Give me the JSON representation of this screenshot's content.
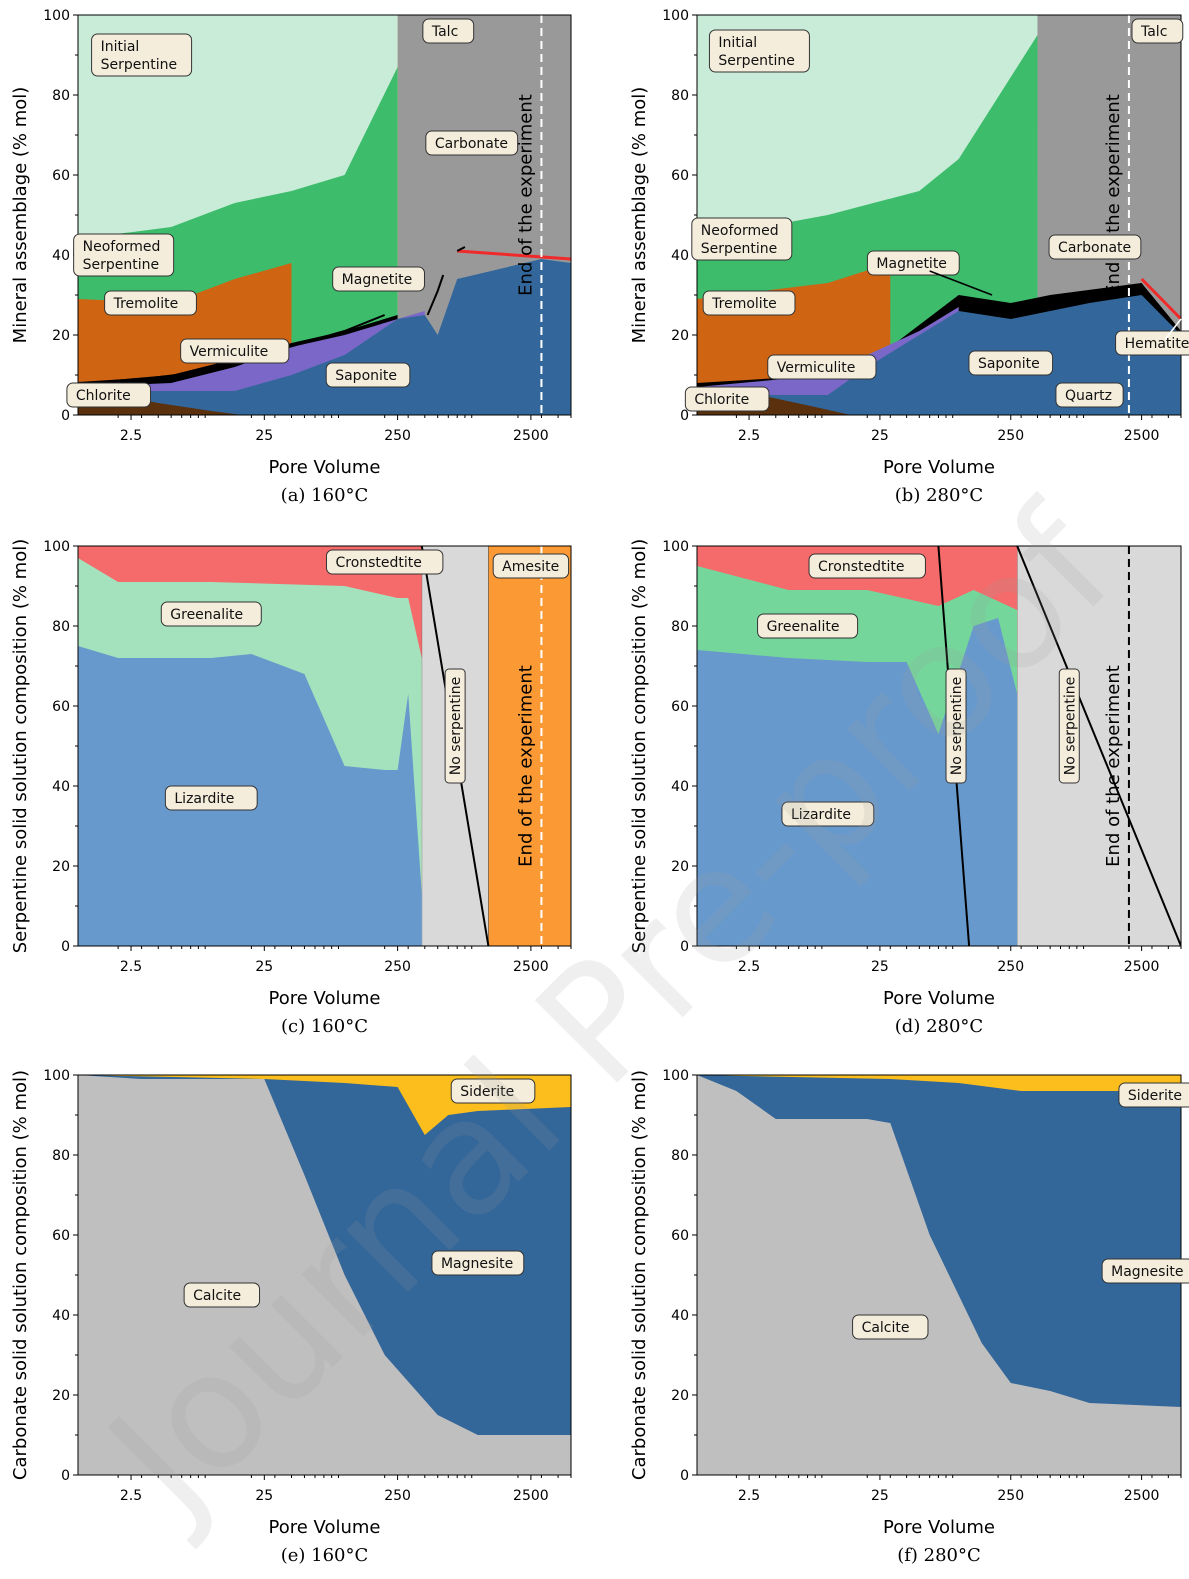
{
  "colors": {
    "initial_serpentine": "#c8ecd8",
    "neoformed_serpentine": "#3dbd6b",
    "tremolite": "#cf6412",
    "chlorite": "#5a300d",
    "vermiculite": "#7a67c8",
    "saponite": "#33679b",
    "magnetite": "#000000",
    "carbonate": "#999999",
    "talc": "#f5bf18",
    "quartz_area": "#cc9a04",
    "hematite": "#f02a2a",
    "lizardite": "#6899cc",
    "greenalite": "#a3e2bd",
    "greenalite_280": "#75d69b",
    "cronstedtite": "#f56a6a",
    "amesite": "#fb9a35",
    "no_serpentine": "#d9d9d9",
    "calcite": "#bfbfbf",
    "magnesite": "#336699",
    "siderite": "#fbbe1c"
  },
  "watermark": "Journal Pre-proof",
  "end_label": "End of the experiment",
  "chart_data": [
    {
      "panel": "a",
      "caption": "(a)  160°C",
      "type": "area",
      "xlabel": "Pore Volume",
      "ylabel": "Mineral assemblage (% mol)",
      "xscale": "log",
      "xlim": [
        1,
        5000
      ],
      "ylim": [
        0,
        100
      ],
      "xticks": [
        "2.5",
        "25",
        "250",
        "2500"
      ],
      "yticks": [
        "0",
        "20",
        "40",
        "60",
        "80",
        "100"
      ],
      "end_of_experiment": 3000,
      "series": [
        {
          "name": "Chlorite",
          "x": [
            1,
            2,
            4,
            10,
            17
          ],
          "values": [
            6,
            5,
            3,
            1,
            0
          ]
        },
        {
          "name": "Saponite",
          "x": [
            1,
            5,
            15,
            40,
            100,
            250,
            400,
            500,
            700,
            3000,
            5000
          ],
          "values": [
            6,
            6,
            6,
            10,
            15,
            24,
            25,
            20,
            34,
            39,
            38
          ]
        },
        {
          "name": "Vermiculite",
          "x": [
            1,
            5,
            15,
            40,
            100,
            250,
            400
          ],
          "values": [
            7,
            8,
            12,
            17,
            20,
            24,
            26
          ]
        },
        {
          "name": "Magnetite",
          "x": [
            1,
            5,
            15,
            40,
            100,
            250
          ],
          "values": [
            8,
            10,
            14,
            18,
            21,
            25
          ]
        },
        {
          "name": "Tremolite",
          "x": [
            1,
            5,
            15,
            40
          ],
          "values": [
            29,
            28,
            34,
            38
          ]
        },
        {
          "name": "Neoformed Serpentine",
          "x": [
            1,
            5,
            15,
            40,
            100,
            250
          ],
          "values": [
            44,
            47,
            53,
            56,
            60,
            87
          ]
        },
        {
          "name": "Initial Serpentine",
          "x": [
            1,
            100,
            250
          ],
          "values": [
            100,
            100,
            100
          ]
        },
        {
          "name": "Carbonate",
          "x": [
            250,
            400,
            1000,
            5000
          ],
          "values": [
            100,
            100,
            100,
            100
          ]
        },
        {
          "name": "Talc",
          "x": [
            250,
            400,
            700
          ],
          "values": [
            100,
            100,
            100
          ]
        },
        {
          "name": "Hematite",
          "x": [
            700,
            5000
          ],
          "values": [
            41,
            39
          ]
        }
      ]
    },
    {
      "panel": "b",
      "caption": "(b)  280°C",
      "type": "area",
      "xlabel": "Pore Volume",
      "ylabel": "Mineral assemblage (% mol)",
      "xscale": "log",
      "xlim": [
        1,
        5000
      ],
      "ylim": [
        0,
        100
      ],
      "xticks": [
        "2.5",
        "25",
        "250",
        "2500"
      ],
      "yticks": [
        "0",
        "20",
        "40",
        "60",
        "80",
        "100"
      ],
      "end_of_experiment": 2000,
      "series": [
        {
          "name": "Chlorite",
          "x": [
            1,
            3,
            8,
            15
          ],
          "values": [
            6,
            5,
            2,
            0
          ]
        },
        {
          "name": "Saponite",
          "x": [
            1,
            10,
            20,
            50,
            100,
            250,
            500,
            1000,
            2500,
            5000
          ],
          "values": [
            5,
            5,
            12,
            20,
            26,
            24,
            26,
            28,
            30,
            20
          ]
        },
        {
          "name": "Quartz",
          "x": [
            400,
            700,
            1000,
            1500,
            3000,
            5000
          ],
          "values": [
            0,
            5,
            10,
            12,
            8,
            0
          ]
        },
        {
          "name": "Vermiculite",
          "x": [
            1,
            10,
            20,
            50,
            100
          ],
          "values": [
            7,
            10,
            15,
            21,
            27
          ]
        },
        {
          "name": "Magnetite",
          "x": [
            1,
            10,
            30,
            100,
            250,
            500,
            2500,
            5000
          ],
          "values": [
            8,
            10,
            17,
            30,
            28,
            30,
            33,
            21
          ]
        },
        {
          "name": "Hematite",
          "x": [
            2500,
            5000
          ],
          "values": [
            34,
            24
          ]
        },
        {
          "name": "Tremolite",
          "x": [
            1,
            10,
            30
          ],
          "values": [
            29,
            33,
            38
          ]
        },
        {
          "name": "Neoformed Serpentine",
          "x": [
            1,
            10,
            50,
            100,
            400
          ],
          "values": [
            44,
            50,
            56,
            64,
            95
          ]
        },
        {
          "name": "Initial Serpentine",
          "x": [
            1,
            400
          ],
          "values": [
            100,
            100
          ]
        },
        {
          "name": "Carbonate",
          "x": [
            400,
            5000
          ],
          "values": [
            100,
            100
          ]
        },
        {
          "name": "Talc",
          "x": [
            400,
            1000,
            3000
          ],
          "values": [
            100,
            100,
            100
          ]
        }
      ]
    },
    {
      "panel": "c",
      "caption": "(c) 160°C",
      "type": "area",
      "xlabel": "Pore Volume",
      "ylabel": "Serpentine solid solution composition (% mol)",
      "xscale": "log",
      "xlim": [
        1,
        5000
      ],
      "ylim": [
        0,
        100
      ],
      "xticks": [
        "2.5",
        "25",
        "250",
        "2500"
      ],
      "yticks": [
        "0",
        "20",
        "40",
        "60",
        "80",
        "100"
      ],
      "end_of_experiment": 3000,
      "no_serpentine_range": [
        380,
        1200
      ],
      "amesite_range": [
        1200,
        5000
      ],
      "series": [
        {
          "name": "Lizardite",
          "x": [
            1,
            2,
            10,
            20,
            50,
            100,
            200,
            250,
            300,
            380
          ],
          "values": [
            75,
            72,
            72,
            73,
            68,
            45,
            44,
            44,
            63,
            13
          ]
        },
        {
          "name": "Greenalite",
          "x": [
            1,
            2,
            10,
            100,
            250,
            300,
            380
          ],
          "values": [
            97,
            91,
            91,
            90,
            87,
            87,
            72
          ]
        },
        {
          "name": "Cronstedtite",
          "x": [
            1,
            380
          ],
          "values": [
            100,
            100
          ]
        }
      ]
    },
    {
      "panel": "d",
      "caption": "(d) 280°C",
      "type": "area",
      "xlabel": "Pore Volume",
      "ylabel": "Serpentine solid solution composition (% mol)",
      "xscale": "log",
      "xlim": [
        1,
        5000
      ],
      "ylim": [
        0,
        100
      ],
      "xticks": [
        "2.5",
        "25",
        "250",
        "2500"
      ],
      "yticks": [
        "0",
        "20",
        "40",
        "60",
        "80",
        "100"
      ],
      "end_of_experiment": 2000,
      "no_serpentine_ranges": [
        [
          70,
          130
        ],
        [
          280,
          5000
        ]
      ],
      "series": [
        {
          "name": "Lizardite",
          "x": [
            1,
            5,
            20,
            40,
            70,
            130,
            200,
            280
          ],
          "values": [
            74,
            72,
            71,
            71,
            53,
            80,
            82,
            63
          ]
        },
        {
          "name": "Greenalite",
          "x": [
            1,
            5,
            20,
            70,
            130,
            280
          ],
          "values": [
            95,
            89,
            89,
            85,
            89,
            84
          ]
        },
        {
          "name": "Cronstedtite",
          "x": [
            1,
            280
          ],
          "values": [
            100,
            100
          ]
        }
      ]
    },
    {
      "panel": "e",
      "caption": "(e) 160°C",
      "type": "area",
      "xlabel": "Pore Volume",
      "ylabel": "Carbonate solid solution composition (% mol)",
      "xscale": "log",
      "xlim": [
        1,
        5000
      ],
      "ylim": [
        0,
        100
      ],
      "xticks": [
        "2.5",
        "25",
        "250",
        "2500"
      ],
      "yticks": [
        "0",
        "20",
        "40",
        "60",
        "80",
        "100"
      ],
      "series": [
        {
          "name": "Calcite",
          "x": [
            1,
            3,
            25,
            50,
            100,
            200,
            500,
            1000,
            5000
          ],
          "values": [
            100,
            99,
            99,
            75,
            50,
            30,
            15,
            10,
            10
          ]
        },
        {
          "name": "Magnesite",
          "x": [
            1,
            25,
            100,
            250,
            400,
            600,
            1000,
            5000
          ],
          "values": [
            100,
            99,
            98,
            97,
            85,
            90,
            91,
            92
          ]
        },
        {
          "name": "Siderite",
          "x": [
            1,
            5000
          ],
          "values": [
            100,
            100
          ]
        }
      ]
    },
    {
      "panel": "f",
      "caption": "(f) 280°C",
      "type": "area",
      "xlabel": "Pore Volume",
      "ylabel": "Carbonate solid solution composition (% mol)",
      "xscale": "log",
      "xlim": [
        1,
        5000
      ],
      "ylim": [
        0,
        100
      ],
      "xticks": [
        "2.5",
        "25",
        "250",
        "2500"
      ],
      "yticks": [
        "0",
        "20",
        "40",
        "60",
        "80",
        "100"
      ],
      "series": [
        {
          "name": "Calcite",
          "x": [
            1,
            2,
            4,
            20,
            30,
            60,
            150,
            250,
            500,
            1000,
            5000
          ],
          "values": [
            100,
            96,
            89,
            89,
            88,
            60,
            33,
            23,
            21,
            18,
            17
          ]
        },
        {
          "name": "Magnesite",
          "x": [
            1,
            30,
            100,
            300,
            5000
          ],
          "values": [
            100,
            99,
            98,
            96,
            96
          ]
        },
        {
          "name": "Siderite",
          "x": [
            1,
            5000
          ],
          "values": [
            100,
            100
          ]
        }
      ]
    }
  ],
  "annotations": [
    {
      "panel": 0,
      "lines": [
        "Initial",
        "Serpentine"
      ],
      "x": 3,
      "y": 90
    },
    {
      "panel": 0,
      "lines": [
        "Neoformed",
        "Serpentine"
      ],
      "x": 2.2,
      "y": 40
    },
    {
      "panel": 0,
      "lines": [
        "Tremolite"
      ],
      "x": 3.5,
      "y": 28
    },
    {
      "panel": 0,
      "lines": [
        "Chlorite"
      ],
      "x": 1.7,
      "y": 5
    },
    {
      "panel": 0,
      "lines": [
        "Vermiculite"
      ],
      "x": 15,
      "y": 16
    },
    {
      "panel": 0,
      "lines": [
        "Magnetite"
      ],
      "x": 180,
      "y": 34
    },
    {
      "panel": 0,
      "lines": [
        "Saponite"
      ],
      "x": 150,
      "y": 10
    },
    {
      "panel": 0,
      "lines": [
        "Carbonate"
      ],
      "x": 900,
      "y": 68
    },
    {
      "panel": 0,
      "lines": [
        "Talc"
      ],
      "x": 600,
      "y": 96
    },
    {
      "panel": 1,
      "lines": [
        "Initial",
        "Serpentine"
      ],
      "x": 3,
      "y": 91
    },
    {
      "panel": 1,
      "lines": [
        "Neoformed",
        "Serpentine"
      ],
      "x": 2.2,
      "y": 44
    },
    {
      "panel": 1,
      "lines": [
        "Tremolite"
      ],
      "x": 2.5,
      "y": 28
    },
    {
      "panel": 1,
      "lines": [
        "Chlorite"
      ],
      "x": 1.7,
      "y": 4
    },
    {
      "panel": 1,
      "lines": [
        "Vermiculite"
      ],
      "x": 9,
      "y": 12
    },
    {
      "panel": 1,
      "lines": [
        "Magnetite"
      ],
      "x": 45,
      "y": 38
    },
    {
      "panel": 1,
      "lines": [
        "Carbonate"
      ],
      "x": 1100,
      "y": 42
    },
    {
      "panel": 1,
      "lines": [
        "Saponite"
      ],
      "x": 250,
      "y": 13
    },
    {
      "panel": 1,
      "lines": [
        "Quartz"
      ],
      "x": 1000,
      "y": 5
    },
    {
      "panel": 1,
      "lines": [
        "Hematite"
      ],
      "x": 3300,
      "y": 18
    },
    {
      "panel": 1,
      "lines": [
        "Talc"
      ],
      "x": 3300,
      "y": 96
    },
    {
      "panel": 2,
      "lines": [
        "Cronstedtite"
      ],
      "x": 200,
      "y": 96
    },
    {
      "panel": 2,
      "lines": [
        "Greenalite"
      ],
      "x": 10,
      "y": 83
    },
    {
      "panel": 2,
      "lines": [
        "Lizardite"
      ],
      "x": 10,
      "y": 37
    },
    {
      "panel": 2,
      "lines": [
        "Amesite"
      ],
      "x": 2500,
      "y": 95
    },
    {
      "panel": 3,
      "lines": [
        "Cronstedtite"
      ],
      "x": 20,
      "y": 95
    },
    {
      "panel": 3,
      "lines": [
        "Greenalite"
      ],
      "x": 7,
      "y": 80
    },
    {
      "panel": 3,
      "lines": [
        "Lizardite"
      ],
      "x": 10,
      "y": 33
    },
    {
      "panel": 4,
      "lines": [
        "Siderite"
      ],
      "x": 1300,
      "y": 96
    },
    {
      "panel": 4,
      "lines": [
        "Magnesite"
      ],
      "x": 1000,
      "y": 53
    },
    {
      "panel": 4,
      "lines": [
        "Calcite"
      ],
      "x": 12,
      "y": 45
    },
    {
      "panel": 5,
      "lines": [
        "Siderite"
      ],
      "x": 3500,
      "y": 95
    },
    {
      "panel": 5,
      "lines": [
        "Magnesite"
      ],
      "x": 2800,
      "y": 51
    },
    {
      "panel": 5,
      "lines": [
        "Calcite"
      ],
      "x": 30,
      "y": 37
    }
  ],
  "no_serpentine_label": "No serpentine",
  "marks": [
    {
      "panel": 0,
      "kind": "curve",
      "x": [
        1,
        3,
        10,
        30,
        100,
        200
      ],
      "y": [
        8,
        9,
        11,
        16,
        21,
        25
      ]
    },
    {
      "panel": 0,
      "kind": "curve",
      "x": [
        420,
        500,
        550
      ],
      "y": [
        25,
        31,
        35
      ]
    },
    {
      "panel": 0,
      "kind": "curve",
      "x": [
        700,
        800
      ],
      "y": [
        41,
        42
      ]
    },
    {
      "panel": 2,
      "kind": "diagonal",
      "x": [
        380,
        1200
      ],
      "y": [
        100,
        0
      ]
    },
    {
      "panel": 3,
      "kind": "diagonal",
      "x": [
        70,
        120
      ],
      "y": [
        100,
        0
      ]
    },
    {
      "panel": 3,
      "kind": "diagonal",
      "x": [
        280,
        5000
      ],
      "y": [
        100,
        0
      ]
    }
  ]
}
